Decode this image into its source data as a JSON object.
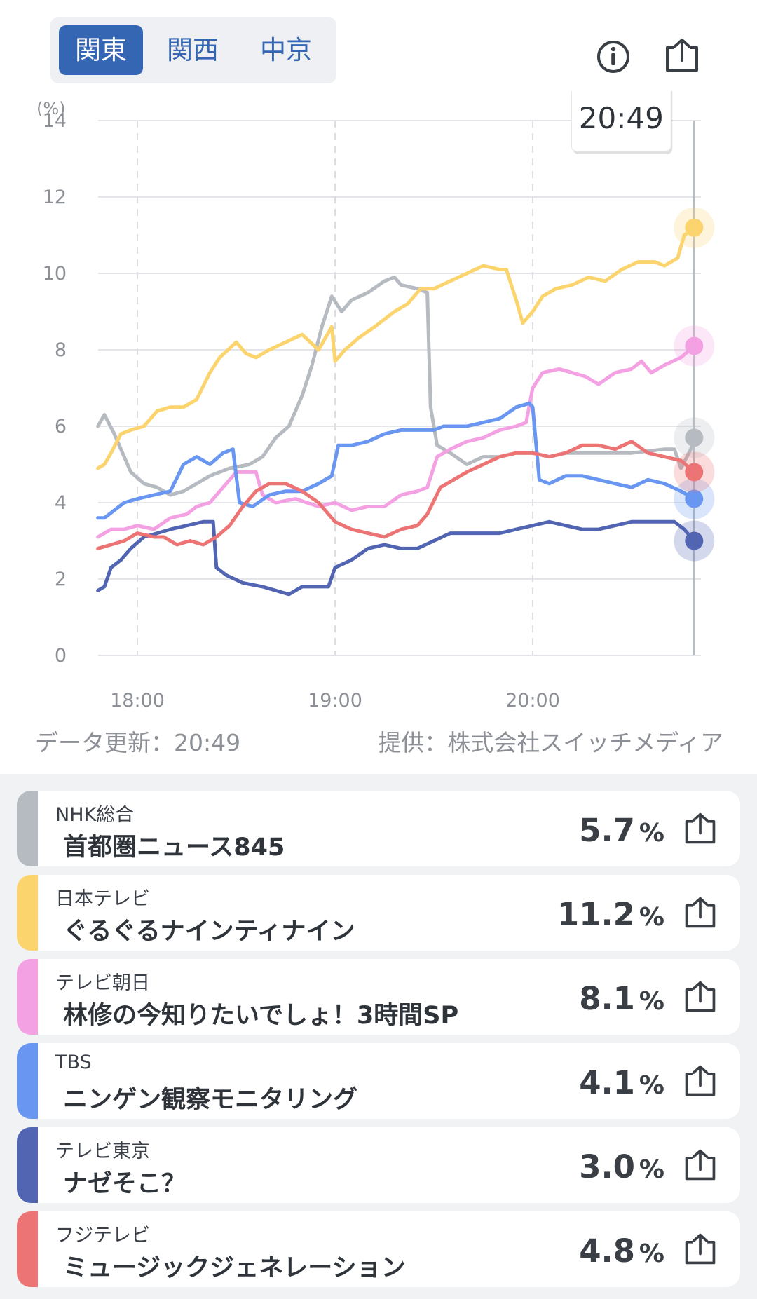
{
  "region_tabs": [
    {
      "label": "関東",
      "active": true
    },
    {
      "label": "関西",
      "active": false
    },
    {
      "label": "中京",
      "active": false
    }
  ],
  "icons": {
    "info": "info-icon",
    "share": "share-icon"
  },
  "chart_data": {
    "type": "line",
    "yunit": "(%)",
    "ylim": [
      0,
      14
    ],
    "yticks": [
      "0",
      "2",
      "4",
      "6",
      "8",
      "10",
      "12",
      "14"
    ],
    "xticks": [
      {
        "label": "18:00",
        "t": "18:00"
      },
      {
        "label": "19:00",
        "t": "19:00"
      },
      {
        "label": "20:00",
        "t": "20:00"
      }
    ],
    "xrange": [
      "17:48",
      "20:50"
    ],
    "grid": true,
    "cursor": {
      "time": "20:49",
      "label": "20:49"
    },
    "series": [
      {
        "name": "NHK総合",
        "color": "#b6bbc2",
        "points": [
          [
            "17:48",
            6.0
          ],
          [
            "17:50",
            6.3
          ],
          [
            "17:53",
            5.8
          ],
          [
            "17:56",
            5.2
          ],
          [
            "17:58",
            4.8
          ],
          [
            "18:02",
            4.5
          ],
          [
            "18:06",
            4.4
          ],
          [
            "18:10",
            4.2
          ],
          [
            "18:14",
            4.3
          ],
          [
            "18:18",
            4.5
          ],
          [
            "18:22",
            4.7
          ],
          [
            "18:28",
            4.9
          ],
          [
            "18:34",
            5.0
          ],
          [
            "18:38",
            5.2
          ],
          [
            "18:42",
            5.7
          ],
          [
            "18:46",
            6.0
          ],
          [
            "18:50",
            6.8
          ],
          [
            "18:53",
            7.6
          ],
          [
            "18:56",
            8.6
          ],
          [
            "18:59",
            9.4
          ],
          [
            "19:02",
            9.0
          ],
          [
            "19:05",
            9.3
          ],
          [
            "19:10",
            9.5
          ],
          [
            "19:15",
            9.8
          ],
          [
            "19:18",
            9.9
          ],
          [
            "19:20",
            9.7
          ],
          [
            "19:25",
            9.6
          ],
          [
            "19:28",
            9.5
          ],
          [
            "19:29",
            6.5
          ],
          [
            "19:31",
            5.5
          ],
          [
            "19:35",
            5.3
          ],
          [
            "19:40",
            5.0
          ],
          [
            "19:45",
            5.2
          ],
          [
            "19:50",
            5.2
          ],
          [
            "19:55",
            5.3
          ],
          [
            "20:00",
            5.3
          ],
          [
            "20:05",
            5.2
          ],
          [
            "20:10",
            5.3
          ],
          [
            "20:20",
            5.3
          ],
          [
            "20:30",
            5.3
          ],
          [
            "20:40",
            5.4
          ],
          [
            "20:43",
            5.4
          ],
          [
            "20:45",
            4.9
          ],
          [
            "20:48",
            5.4
          ],
          [
            "20:49",
            5.7
          ]
        ]
      },
      {
        "name": "日本テレビ",
        "color": "#fbd46e",
        "points": [
          [
            "17:48",
            4.9
          ],
          [
            "17:50",
            5.0
          ],
          [
            "17:52",
            5.3
          ],
          [
            "17:55",
            5.8
          ],
          [
            "17:58",
            5.9
          ],
          [
            "18:02",
            6.0
          ],
          [
            "18:06",
            6.4
          ],
          [
            "18:10",
            6.5
          ],
          [
            "18:14",
            6.5
          ],
          [
            "18:18",
            6.7
          ],
          [
            "18:22",
            7.4
          ],
          [
            "18:25",
            7.8
          ],
          [
            "18:30",
            8.2
          ],
          [
            "18:33",
            7.9
          ],
          [
            "18:36",
            7.8
          ],
          [
            "18:40",
            8.0
          ],
          [
            "18:45",
            8.2
          ],
          [
            "18:50",
            8.4
          ],
          [
            "18:55",
            8.0
          ],
          [
            "18:59",
            8.6
          ],
          [
            "19:00",
            7.7
          ],
          [
            "19:03",
            8.0
          ],
          [
            "19:07",
            8.3
          ],
          [
            "19:12",
            8.6
          ],
          [
            "19:18",
            9.0
          ],
          [
            "19:22",
            9.2
          ],
          [
            "19:26",
            9.6
          ],
          [
            "19:30",
            9.6
          ],
          [
            "19:35",
            9.8
          ],
          [
            "19:40",
            10.0
          ],
          [
            "19:45",
            10.2
          ],
          [
            "19:50",
            10.1
          ],
          [
            "19:52",
            10.1
          ],
          [
            "19:55",
            9.3
          ],
          [
            "19:57",
            8.7
          ],
          [
            "20:00",
            9.0
          ],
          [
            "20:03",
            9.4
          ],
          [
            "20:07",
            9.6
          ],
          [
            "20:12",
            9.7
          ],
          [
            "20:17",
            9.9
          ],
          [
            "20:22",
            9.8
          ],
          [
            "20:27",
            10.1
          ],
          [
            "20:32",
            10.3
          ],
          [
            "20:37",
            10.3
          ],
          [
            "20:40",
            10.2
          ],
          [
            "20:42",
            10.3
          ],
          [
            "20:44",
            10.4
          ],
          [
            "20:46",
            11.0
          ],
          [
            "20:49",
            11.2
          ]
        ]
      },
      {
        "name": "テレビ朝日",
        "color": "#f4a1e3",
        "points": [
          [
            "17:48",
            3.1
          ],
          [
            "17:52",
            3.3
          ],
          [
            "17:56",
            3.3
          ],
          [
            "18:00",
            3.4
          ],
          [
            "18:05",
            3.3
          ],
          [
            "18:10",
            3.6
          ],
          [
            "18:15",
            3.7
          ],
          [
            "18:18",
            3.9
          ],
          [
            "18:22",
            4.0
          ],
          [
            "18:26",
            4.4
          ],
          [
            "18:30",
            4.8
          ],
          [
            "18:36",
            4.8
          ],
          [
            "18:38",
            4.2
          ],
          [
            "18:42",
            4.0
          ],
          [
            "18:48",
            4.1
          ],
          [
            "18:55",
            3.9
          ],
          [
            "19:00",
            4.0
          ],
          [
            "19:05",
            3.8
          ],
          [
            "19:10",
            3.9
          ],
          [
            "19:15",
            3.9
          ],
          [
            "19:20",
            4.2
          ],
          [
            "19:25",
            4.3
          ],
          [
            "19:28",
            4.4
          ],
          [
            "19:31",
            5.2
          ],
          [
            "19:35",
            5.4
          ],
          [
            "19:40",
            5.6
          ],
          [
            "19:45",
            5.7
          ],
          [
            "19:50",
            5.9
          ],
          [
            "19:55",
            6.0
          ],
          [
            "19:58",
            6.1
          ],
          [
            "20:00",
            7.0
          ],
          [
            "20:03",
            7.4
          ],
          [
            "20:08",
            7.5
          ],
          [
            "20:12",
            7.4
          ],
          [
            "20:16",
            7.3
          ],
          [
            "20:20",
            7.1
          ],
          [
            "20:25",
            7.4
          ],
          [
            "20:30",
            7.5
          ],
          [
            "20:33",
            7.7
          ],
          [
            "20:36",
            7.4
          ],
          [
            "20:40",
            7.6
          ],
          [
            "20:45",
            7.8
          ],
          [
            "20:49",
            8.1
          ]
        ]
      },
      {
        "name": "TBS",
        "color": "#6896f0",
        "points": [
          [
            "17:48",
            3.6
          ],
          [
            "17:50",
            3.6
          ],
          [
            "17:53",
            3.8
          ],
          [
            "17:56",
            4.0
          ],
          [
            "18:00",
            4.1
          ],
          [
            "18:05",
            4.2
          ],
          [
            "18:10",
            4.3
          ],
          [
            "18:14",
            5.0
          ],
          [
            "18:18",
            5.2
          ],
          [
            "18:22",
            5.0
          ],
          [
            "18:26",
            5.3
          ],
          [
            "18:29",
            5.4
          ],
          [
            "18:31",
            4.0
          ],
          [
            "18:35",
            3.9
          ],
          [
            "18:40",
            4.2
          ],
          [
            "18:45",
            4.3
          ],
          [
            "18:50",
            4.3
          ],
          [
            "18:55",
            4.5
          ],
          [
            "18:59",
            4.7
          ],
          [
            "19:01",
            5.5
          ],
          [
            "19:05",
            5.5
          ],
          [
            "19:10",
            5.6
          ],
          [
            "19:15",
            5.8
          ],
          [
            "19:20",
            5.9
          ],
          [
            "19:25",
            5.9
          ],
          [
            "19:30",
            5.9
          ],
          [
            "19:33",
            6.0
          ],
          [
            "19:40",
            6.0
          ],
          [
            "19:45",
            6.1
          ],
          [
            "19:50",
            6.2
          ],
          [
            "19:55",
            6.5
          ],
          [
            "19:59",
            6.6
          ],
          [
            "20:00",
            6.5
          ],
          [
            "20:02",
            4.6
          ],
          [
            "20:05",
            4.5
          ],
          [
            "20:10",
            4.7
          ],
          [
            "20:15",
            4.7
          ],
          [
            "20:20",
            4.6
          ],
          [
            "20:25",
            4.5
          ],
          [
            "20:30",
            4.4
          ],
          [
            "20:35",
            4.6
          ],
          [
            "20:40",
            4.5
          ],
          [
            "20:45",
            4.3
          ],
          [
            "20:49",
            4.1
          ]
        ]
      },
      {
        "name": "テレビ東京",
        "color": "#5165b3",
        "points": [
          [
            "17:48",
            1.7
          ],
          [
            "17:50",
            1.8
          ],
          [
            "17:52",
            2.3
          ],
          [
            "17:55",
            2.5
          ],
          [
            "17:58",
            2.8
          ],
          [
            "18:02",
            3.1
          ],
          [
            "18:06",
            3.2
          ],
          [
            "18:10",
            3.3
          ],
          [
            "18:15",
            3.4
          ],
          [
            "18:20",
            3.5
          ],
          [
            "18:23",
            3.5
          ],
          [
            "18:24",
            2.3
          ],
          [
            "18:27",
            2.1
          ],
          [
            "18:32",
            1.9
          ],
          [
            "18:38",
            1.8
          ],
          [
            "18:42",
            1.7
          ],
          [
            "18:46",
            1.6
          ],
          [
            "18:50",
            1.8
          ],
          [
            "18:55",
            1.8
          ],
          [
            "18:58",
            1.8
          ],
          [
            "19:00",
            2.3
          ],
          [
            "19:05",
            2.5
          ],
          [
            "19:10",
            2.8
          ],
          [
            "19:15",
            2.9
          ],
          [
            "19:20",
            2.8
          ],
          [
            "19:25",
            2.8
          ],
          [
            "19:30",
            3.0
          ],
          [
            "19:35",
            3.2
          ],
          [
            "19:40",
            3.2
          ],
          [
            "19:45",
            3.2
          ],
          [
            "19:50",
            3.2
          ],
          [
            "19:55",
            3.3
          ],
          [
            "20:00",
            3.4
          ],
          [
            "20:05",
            3.5
          ],
          [
            "20:10",
            3.4
          ],
          [
            "20:15",
            3.3
          ],
          [
            "20:20",
            3.3
          ],
          [
            "20:25",
            3.4
          ],
          [
            "20:30",
            3.5
          ],
          [
            "20:35",
            3.5
          ],
          [
            "20:40",
            3.5
          ],
          [
            "20:43",
            3.5
          ],
          [
            "20:46",
            3.3
          ],
          [
            "20:49",
            3.0
          ]
        ]
      },
      {
        "name": "フジテレビ",
        "color": "#ec7474",
        "points": [
          [
            "17:48",
            2.8
          ],
          [
            "17:52",
            2.9
          ],
          [
            "17:56",
            3.0
          ],
          [
            "18:00",
            3.2
          ],
          [
            "18:05",
            3.1
          ],
          [
            "18:08",
            3.1
          ],
          [
            "18:12",
            2.9
          ],
          [
            "18:16",
            3.0
          ],
          [
            "18:20",
            2.9
          ],
          [
            "18:24",
            3.1
          ],
          [
            "18:28",
            3.4
          ],
          [
            "18:32",
            3.9
          ],
          [
            "18:36",
            4.3
          ],
          [
            "18:40",
            4.5
          ],
          [
            "18:45",
            4.5
          ],
          [
            "18:50",
            4.3
          ],
          [
            "18:55",
            4.0
          ],
          [
            "19:00",
            3.5
          ],
          [
            "19:05",
            3.3
          ],
          [
            "19:10",
            3.2
          ],
          [
            "19:15",
            3.1
          ],
          [
            "19:20",
            3.3
          ],
          [
            "19:25",
            3.4
          ],
          [
            "19:28",
            3.7
          ],
          [
            "19:32",
            4.4
          ],
          [
            "19:36",
            4.6
          ],
          [
            "19:40",
            4.8
          ],
          [
            "19:45",
            5.0
          ],
          [
            "19:50",
            5.2
          ],
          [
            "19:55",
            5.3
          ],
          [
            "20:00",
            5.3
          ],
          [
            "20:05",
            5.2
          ],
          [
            "20:10",
            5.3
          ],
          [
            "20:15",
            5.5
          ],
          [
            "20:20",
            5.5
          ],
          [
            "20:25",
            5.4
          ],
          [
            "20:30",
            5.6
          ],
          [
            "20:35",
            5.3
          ],
          [
            "20:40",
            5.2
          ],
          [
            "20:45",
            5.1
          ],
          [
            "20:49",
            4.8
          ]
        ]
      }
    ]
  },
  "footer": {
    "updated": "データ更新：20:49",
    "provider": "提供：株式会社スイッチメディア"
  },
  "channels": [
    {
      "channel": "NHK総合",
      "program": "首都圏ニュース845",
      "rating": "5.7",
      "unit": "%",
      "color": "#b6bbc2"
    },
    {
      "channel": "日本テレビ",
      "program": "ぐるぐるナインティナイン",
      "rating": "11.2",
      "unit": "%",
      "color": "#fbd46e"
    },
    {
      "channel": "テレビ朝日",
      "program": "林修の今知りたいでしょ！3時間SP",
      "rating": "8.1",
      "unit": "%",
      "color": "#f4a1e3"
    },
    {
      "channel": "TBS",
      "program": "ニンゲン観察モニタリング",
      "rating": "4.1",
      "unit": "%",
      "color": "#6896f0"
    },
    {
      "channel": "テレビ東京",
      "program": "ナゼそこ？",
      "rating": "3.0",
      "unit": "%",
      "color": "#5165b3"
    },
    {
      "channel": "フジテレビ",
      "program": "ミュージックジェネレーション",
      "rating": "4.8",
      "unit": "%",
      "color": "#ec7474"
    }
  ]
}
